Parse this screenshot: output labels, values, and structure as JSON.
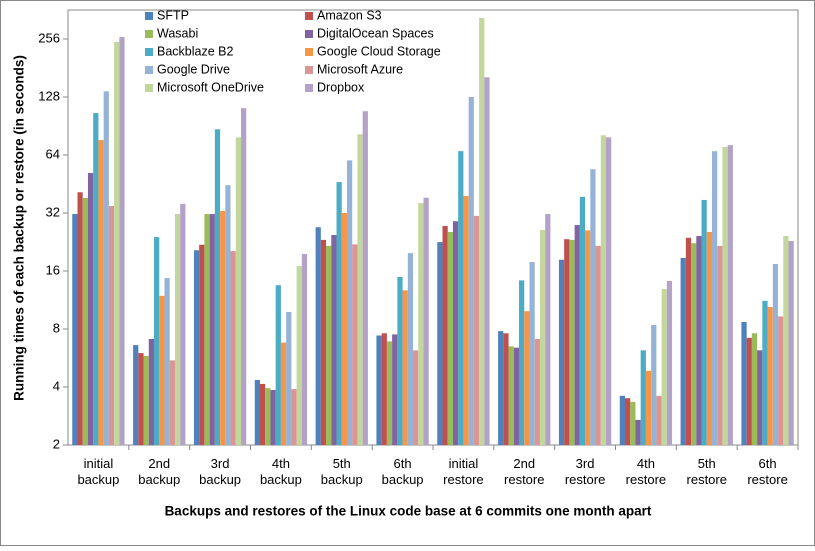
{
  "chart_data": {
    "type": "bar",
    "x_label": "Backups and restores of the Linux code base at 6 commits one month apart",
    "y_label": "Running times of each backup or restore (in seconds)",
    "categories": [
      "initial backup",
      "2nd backup",
      "3rd backup",
      "4th backup",
      "5th backup",
      "6th backup",
      "initial restore",
      "2nd restore",
      "3rd restore",
      "4th restore",
      "5th restore",
      "6th restore"
    ],
    "ylim": [
      2,
      362
    ],
    "yticks": [
      2,
      4,
      8,
      16,
      32,
      64,
      128,
      256
    ],
    "log_scale": true,
    "log_base": 2,
    "grid": false,
    "legend": "top-left",
    "series": [
      {
        "name": "SFTP",
        "color": "#4f81bd",
        "values": [
          31.6,
          6.6,
          20.5,
          4.35,
          27,
          7.4,
          22.6,
          7.8,
          18.3,
          3.6,
          18.7,
          8.7
        ]
      },
      {
        "name": "Amazon S3",
        "color": "#c0504d",
        "values": [
          41,
          6.0,
          21.9,
          4.15,
          23.2,
          7.6,
          27.4,
          7.6,
          23.4,
          3.5,
          23.8,
          7.2
        ]
      },
      {
        "name": "Wasabi",
        "color": "#9bbb59",
        "values": [
          38.3,
          5.8,
          31.6,
          3.95,
          21.6,
          6.9,
          25.5,
          6.5,
          23.2,
          3.35,
          22.3,
          7.6
        ]
      },
      {
        "name": "DigitalOcean Spaces",
        "color": "#8064a2",
        "values": [
          51.6,
          7.1,
          31.6,
          3.86,
          24.6,
          7.5,
          29,
          6.4,
          27.7,
          2.7,
          24.3,
          6.2
        ]
      },
      {
        "name": "Backblaze B2",
        "color": "#4bacc6",
        "values": [
          105.6,
          24,
          87,
          13.5,
          46.3,
          14.9,
          67,
          14.3,
          38.8,
          6.2,
          37.4,
          11.2
        ]
      },
      {
        "name": "Google Cloud Storage",
        "color": "#f79646",
        "values": [
          76.5,
          11.9,
          32.8,
          6.8,
          32,
          12.7,
          39.2,
          9.9,
          26,
          4.85,
          25.5,
          10.4
        ]
      },
      {
        "name": "Google Drive",
        "color": "#95b3d7",
        "values": [
          137,
          14.7,
          44.6,
          9.8,
          60,
          19.8,
          128,
          17.8,
          54,
          8.4,
          67,
          17.4
        ]
      },
      {
        "name": "Microsoft Azure",
        "color": "#d99694",
        "values": [
          34.8,
          5.5,
          20.3,
          3.9,
          22,
          6.2,
          30.9,
          7.1,
          21.6,
          3.6,
          21.6,
          9.3
        ]
      },
      {
        "name": "Microsoft OneDrive",
        "color": "#c3d69b",
        "values": [
          247,
          31.6,
          79,
          17,
          82,
          36,
          329,
          26.1,
          81,
          12.9,
          70.5,
          24.3
        ]
      },
      {
        "name": "Dropbox",
        "color": "#b3a2c7",
        "values": [
          262,
          35.7,
          112,
          19.6,
          108,
          38.4,
          162,
          31.6,
          79,
          14.2,
          72,
          22.9
        ]
      }
    ]
  }
}
